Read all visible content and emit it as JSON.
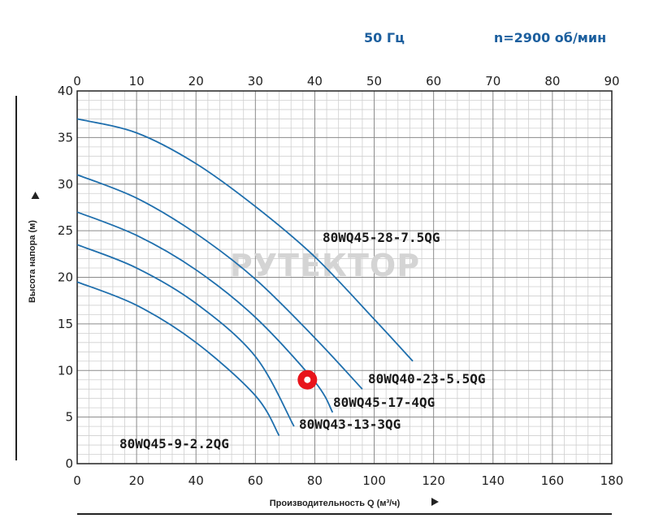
{
  "header": {
    "frequency": "50 Гц",
    "speed": "n=2900 об/мин"
  },
  "watermark": "РУТЕКТОР",
  "chart_data": {
    "type": "line",
    "xlabel": "Производительность Q (м³/ч)",
    "ylabel": "Высота напора (м)",
    "xlim": [
      0,
      180
    ],
    "xlim_top": [
      0,
      90
    ],
    "ylim": [
      0,
      40
    ],
    "x_ticks": [
      0,
      20,
      40,
      60,
      80,
      100,
      120,
      140,
      160,
      180
    ],
    "x_ticks_top": [
      0,
      10,
      20,
      30,
      40,
      50,
      60,
      70,
      80,
      90
    ],
    "y_ticks": [
      0,
      5,
      10,
      15,
      20,
      25,
      30,
      35,
      40
    ],
    "grid": true,
    "series": [
      {
        "name": "80WQ45-28-7.5QG",
        "x": [
          0,
          20,
          40,
          60,
          80,
          100,
          113
        ],
        "y": [
          37,
          35.5,
          32.2,
          27.6,
          22.2,
          15.5,
          11
        ]
      },
      {
        "name": "80WQ40-23-5.5QG",
        "x": [
          0,
          20,
          40,
          60,
          80,
          96
        ],
        "y": [
          31,
          28.5,
          24.7,
          19.8,
          13.5,
          8
        ]
      },
      {
        "name": "80WQ45-17-4QG",
        "x": [
          0,
          20,
          40,
          60,
          80,
          86
        ],
        "y": [
          27,
          24.5,
          20.8,
          15.7,
          8.8,
          5.5
        ]
      },
      {
        "name": "80WQ43-13-3QG",
        "x": [
          0,
          20,
          40,
          60,
          73
        ],
        "y": [
          23.5,
          21,
          17.2,
          11.5,
          4
        ]
      },
      {
        "name": "80WQ45-9-2.2QG",
        "x": [
          0,
          20,
          40,
          60,
          68
        ],
        "y": [
          19.5,
          17,
          13,
          7.3,
          3
        ]
      }
    ],
    "marker": {
      "x": 77.5,
      "y": 9,
      "color": "#e8141b"
    },
    "curve_color": "#1f6fad"
  }
}
